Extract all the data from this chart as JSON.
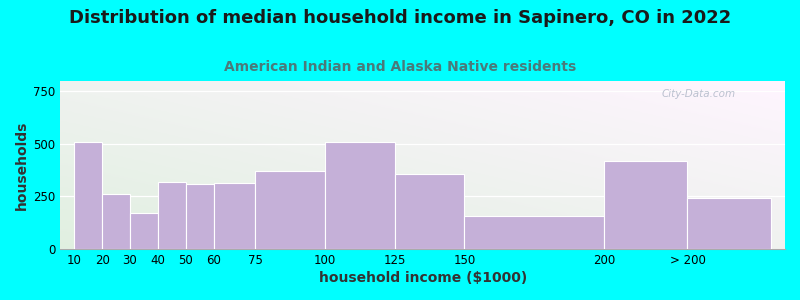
{
  "title": "Distribution of median household income in Sapinero, CO in 2022",
  "subtitle": "American Indian and Alaska Native residents",
  "xlabel": "household income ($1000)",
  "ylabel": "households",
  "background_color": "#00FFFF",
  "bar_color": "#C5B0D8",
  "bar_edge_color": "#ffffff",
  "categories": [
    "10",
    "20",
    "30",
    "40",
    "50",
    "60",
    "75",
    "100",
    "125",
    "150",
    "200",
    "> 200"
  ],
  "values": [
    510,
    260,
    170,
    320,
    310,
    315,
    370,
    510,
    355,
    155,
    420,
    245
  ],
  "bar_left_edges": [
    10,
    20,
    30,
    40,
    50,
    60,
    75,
    100,
    125,
    150,
    200,
    230
  ],
  "bar_widths": [
    10,
    10,
    10,
    10,
    10,
    15,
    25,
    25,
    25,
    50,
    30,
    30
  ],
  "xlim": [
    5,
    265
  ],
  "ylim": [
    0,
    800
  ],
  "yticks": [
    0,
    250,
    500,
    750
  ],
  "title_fontsize": 13,
  "subtitle_fontsize": 10,
  "axis_label_fontsize": 10,
  "tick_fontsize": 8.5,
  "watermark_text": "City-Data.com"
}
